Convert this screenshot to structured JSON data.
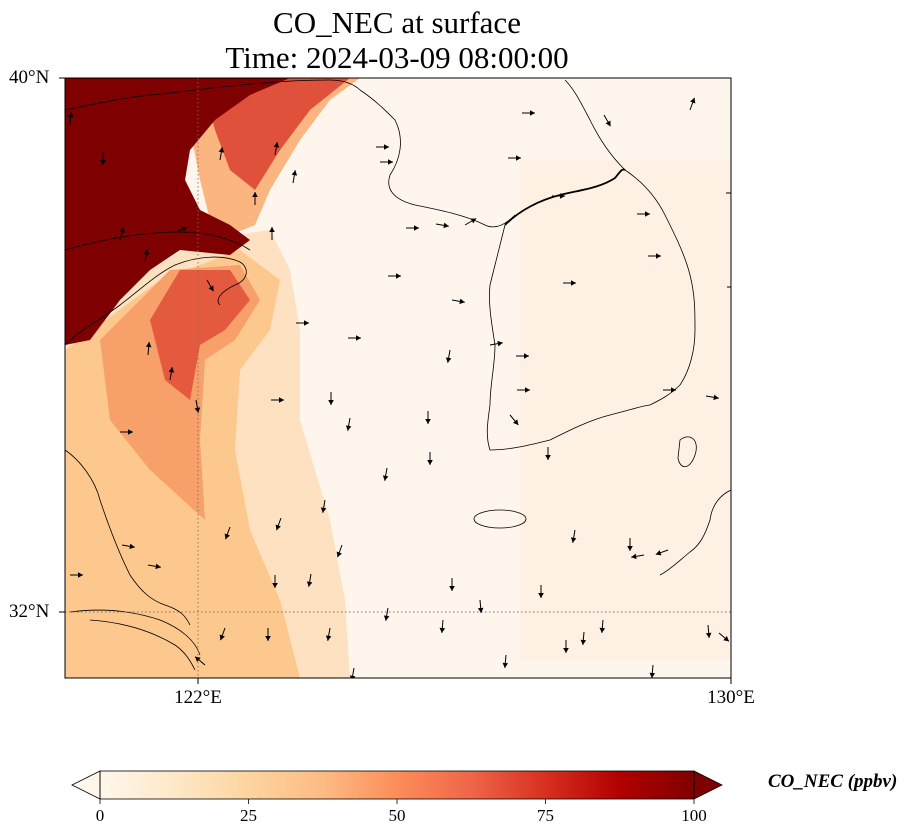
{
  "title": {
    "line1": "CO_NEC at surface",
    "line2": "Time: 2024-03-09 08:00:00"
  },
  "axes": {
    "lat_labels": [
      "40°N",
      "32°N"
    ],
    "lon_labels": [
      "122°E",
      "130°E"
    ]
  },
  "colorbar": {
    "label": "CO_NEC (ppbv)",
    "ticks": [
      "0",
      "25",
      "50",
      "75",
      "100"
    ],
    "colormap": "OrRd",
    "min": 0,
    "max": 100,
    "extend": "both"
  },
  "map": {
    "lon_range": [
      120,
      130
    ],
    "lat_range": [
      31,
      40
    ],
    "gridlines": {
      "lons": [
        122,
        130
      ],
      "lats": [
        32,
        40
      ],
      "style": "dotted"
    },
    "vectors": "wind arrows, mostly southward"
  },
  "colors": {
    "high": "#7f0000",
    "mid": "#ef6548",
    "low": "#fff7ec",
    "coast": "#000000"
  }
}
